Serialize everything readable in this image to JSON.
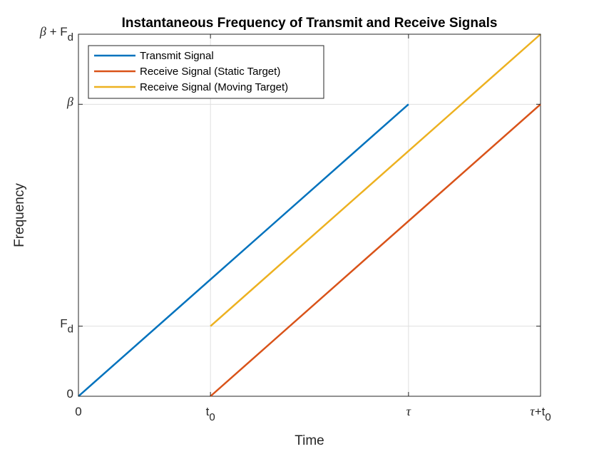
{
  "chart_data": {
    "type": "line",
    "title": "Instantaneous Frequency of Transmit and Receive Signals",
    "xlabel": "Time",
    "ylabel": "Frequency",
    "xlim": [
      0,
      1.4
    ],
    "ylim": [
      0,
      1.24
    ],
    "grid": true,
    "legend": "top-left",
    "x_ticks": [
      {
        "value": 0,
        "label": "0",
        "sub": ""
      },
      {
        "value": 0.4,
        "label": "t",
        "sub": "0"
      },
      {
        "value": 1.0,
        "label": "τ",
        "sub": ""
      },
      {
        "value": 1.4,
        "label": "τ+t",
        "sub": "0"
      }
    ],
    "y_ticks": [
      {
        "value": 0,
        "label": "0",
        "sub": ""
      },
      {
        "value": 0.24,
        "label": "F",
        "sub": "d"
      },
      {
        "value": 1.0,
        "label": "β",
        "sub": ""
      },
      {
        "value": 1.24,
        "label": "β + F",
        "sub": "d"
      }
    ],
    "series": [
      {
        "name": "Transmit Signal",
        "color": "#0072BD",
        "x": [
          0,
          1.0
        ],
        "y": [
          0,
          1.0
        ]
      },
      {
        "name": "Receive Signal (Static Target)",
        "color": "#D95319",
        "x": [
          0.4,
          1.4
        ],
        "y": [
          0,
          1.0
        ]
      },
      {
        "name": "Receive Signal (Moving Target)",
        "color": "#EDB120",
        "x": [
          0.4,
          1.4
        ],
        "y": [
          0.24,
          1.24
        ]
      }
    ]
  }
}
